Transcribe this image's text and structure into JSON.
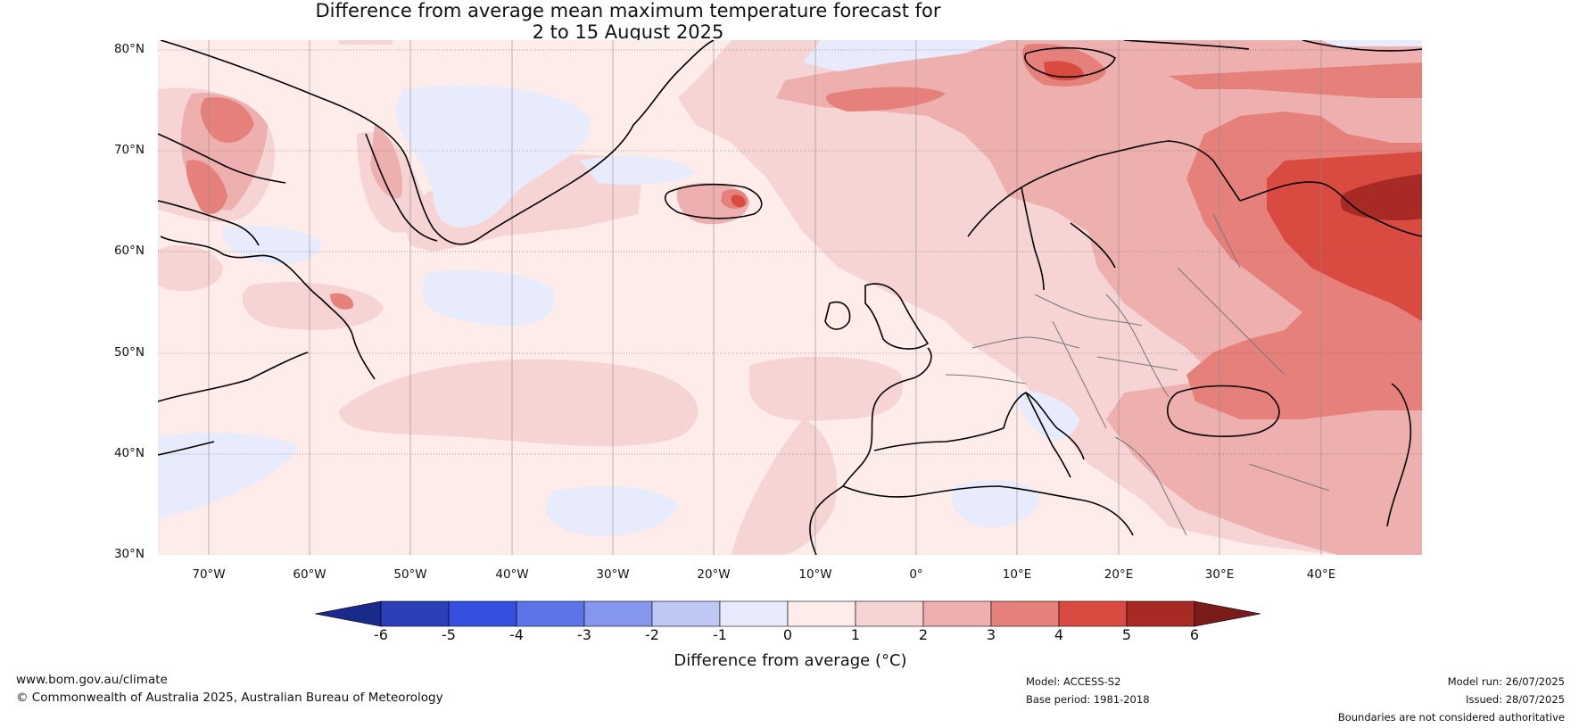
{
  "header": {
    "title_line1": "Difference from average mean maximum temperature forecast for",
    "title_line2": "2 to 15 August 2025"
  },
  "map": {
    "lat_labels": [
      "80°N",
      "70°N",
      "60°N",
      "50°N",
      "40°N",
      "30°N"
    ],
    "lon_labels": [
      "70°W",
      "60°W",
      "50°W",
      "40°W",
      "30°W",
      "20°W",
      "10°W",
      "0°",
      "10°E",
      "20°E",
      "30°E",
      "40°E"
    ],
    "lon_range": [
      -75,
      50
    ],
    "lat_range": [
      30,
      81
    ]
  },
  "colorbar": {
    "title": "Difference from average (°C)",
    "ticks": [
      "-6",
      "-5",
      "-4",
      "-3",
      "-2",
      "-1",
      "0",
      "1",
      "2",
      "3",
      "4",
      "5",
      "6"
    ],
    "colors": [
      "#1a2a8a",
      "#2a3fb8",
      "#3550e0",
      "#5d74e6",
      "#8597ec",
      "#bfc8f4",
      "#e8ebfb",
      "#fdecea",
      "#f5d4d3",
      "#eeb0ae",
      "#e5807b",
      "#d94a40",
      "#a82a25",
      "#7a1c19"
    ]
  },
  "footer": {
    "website": "www.bom.gov.au/climate",
    "copyright": "© Commonwealth of Australia 2025, Australian Bureau of Meteorology",
    "model": "Model: ACCESS-S2",
    "base_period": "Base period: 1981-2018",
    "model_run": "Model run: 26/07/2025",
    "issued": "Issued: 28/07/2025",
    "disclaimer": "Boundaries are not considered authoritative"
  }
}
